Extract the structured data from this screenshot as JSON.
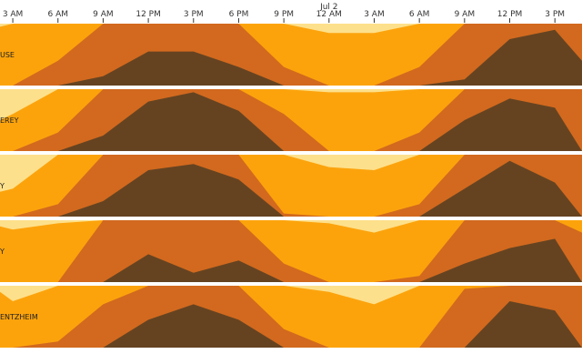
{
  "chart_data": {
    "type": "area",
    "subtype": "horizon",
    "x_unit": "hours since Jul 1 12 AM",
    "xlim": [
      2.15,
      40.8
    ],
    "ticks": [
      {
        "t": 3,
        "label": "3 AM"
      },
      {
        "t": 6,
        "label": "6 AM"
      },
      {
        "t": 9,
        "label": "9 AM"
      },
      {
        "t": 12,
        "label": "12 PM"
      },
      {
        "t": 15,
        "label": "3 PM"
      },
      {
        "t": 18,
        "label": "6 PM"
      },
      {
        "t": 21,
        "label": "9 PM"
      },
      {
        "t": 24,
        "label": "12 AM",
        "sublabel": "Jul 2"
      },
      {
        "t": 27,
        "label": "3 AM"
      },
      {
        "t": 30,
        "label": "6 AM"
      },
      {
        "t": 33,
        "label": "9 AM"
      },
      {
        "t": 36,
        "label": "12 PM"
      },
      {
        "t": 39,
        "label": "3 PM"
      }
    ],
    "bands": 4,
    "band_colors": [
      "#fde08b",
      "#fca30c",
      "#d2691e",
      "#654321"
    ],
    "x": [
      2.15,
      3,
      6,
      9,
      12,
      15,
      18,
      21,
      24,
      27,
      30,
      33,
      36,
      39,
      40.8
    ],
    "series": [
      {
        "name": "USE",
        "values": [
          0.95,
          1.0,
          1.4,
          2.15,
          2.55,
          2.55,
          2.3,
          1.3,
          0.85,
          0.85,
          1.3,
          2.1,
          2.75,
          2.9,
          2.4
        ]
      },
      {
        "name": "EREY",
        "values": [
          0.5,
          0.6,
          1.3,
          2.25,
          2.8,
          2.95,
          2.65,
          1.6,
          0.95,
          0.95,
          1.3,
          2.5,
          2.85,
          2.7,
          2.0
        ]
      },
      {
        "name": "Y",
        "values": [
          0.4,
          0.45,
          1.2,
          2.25,
          2.75,
          2.85,
          2.6,
          1.05,
          0.8,
          0.75,
          1.2,
          2.45,
          2.9,
          2.55,
          2.0
        ]
      },
      {
        "name": "Y",
        "values": [
          0.9,
          0.85,
          0.95,
          2.0,
          2.45,
          2.15,
          2.35,
          1.3,
          0.95,
          0.8,
          1.1,
          2.3,
          2.55,
          2.7,
          1.8
        ]
      },
      {
        "name": "ENTZHEIM",
        "values": [
          0.9,
          0.75,
          1.1,
          1.7,
          2.45,
          2.7,
          2.45,
          1.3,
          0.9,
          0.7,
          1.0,
          1.95,
          2.75,
          2.6,
          2.0
        ]
      }
    ]
  }
}
